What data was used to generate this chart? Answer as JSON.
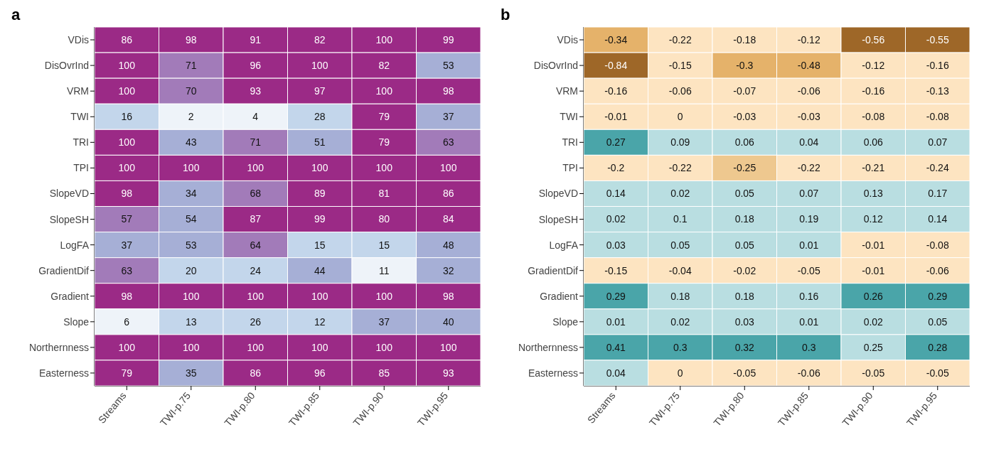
{
  "chart_data": [
    {
      "type": "heatmap",
      "title": "a",
      "categories": [
        "Streams",
        "TWI-p.75",
        "TWI-p.80",
        "TWI-p.85",
        "TWI-p.90",
        "TWI-p.95"
      ],
      "y_categories": [
        "VDis",
        "DisOvrInd",
        "VRM",
        "TWI",
        "TRI",
        "TPI",
        "SlopeVD",
        "SlopeSH",
        "LogFA",
        "GradientDif",
        "Gradient",
        "Slope",
        "Northernness",
        "Easterness"
      ],
      "data_labels": true,
      "cells": [
        [
          86,
          98,
          91,
          82,
          100,
          99
        ],
        [
          100,
          71,
          96,
          100,
          82,
          53
        ],
        [
          100,
          70,
          93,
          97,
          100,
          98
        ],
        [
          16,
          2,
          4,
          28,
          79,
          37
        ],
        [
          100,
          43,
          71,
          51,
          79,
          63
        ],
        [
          100,
          100,
          100,
          100,
          100,
          100
        ],
        [
          98,
          34,
          68,
          89,
          81,
          86
        ],
        [
          57,
          54,
          87,
          99,
          80,
          84
        ],
        [
          37,
          53,
          64,
          15,
          15,
          48
        ],
        [
          63,
          20,
          24,
          44,
          11,
          32
        ],
        [
          98,
          100,
          100,
          100,
          100,
          98
        ],
        [
          6,
          13,
          26,
          12,
          37,
          40
        ],
        [
          100,
          100,
          100,
          100,
          100,
          100
        ],
        [
          79,
          35,
          86,
          96,
          85,
          93
        ]
      ]
    },
    {
      "type": "heatmap",
      "title": "b",
      "categories": [
        "Streams",
        "TWI-p.75",
        "TWI-p.80",
        "TWI-p.85",
        "TWI-p.90",
        "TWI-p.95"
      ],
      "y_categories": [
        "VDis",
        "DisOvrInd",
        "VRM",
        "TWI",
        "TRI",
        "TPI",
        "SlopeVD",
        "SlopeSH",
        "LogFA",
        "GradientDif",
        "Gradient",
        "Slope",
        "Northernness",
        "Easterness"
      ],
      "data_labels": true,
      "cells": [
        [
          -0.34,
          -0.22,
          -0.18,
          -0.12,
          -0.56,
          -0.55
        ],
        [
          -0.84,
          -0.15,
          -0.3,
          -0.48,
          -0.12,
          -0.16
        ],
        [
          -0.16,
          -0.06,
          -0.07,
          -0.06,
          -0.16,
          -0.13
        ],
        [
          -0.01,
          0,
          -0.03,
          -0.03,
          -0.08,
          -0.08
        ],
        [
          0.27,
          0.09,
          0.06,
          0.04,
          0.06,
          0.07
        ],
        [
          -0.2,
          -0.22,
          -0.25,
          -0.22,
          -0.21,
          -0.24
        ],
        [
          0.14,
          0.02,
          0.05,
          0.07,
          0.13,
          0.17
        ],
        [
          0.02,
          0.1,
          0.18,
          0.19,
          0.12,
          0.14
        ],
        [
          0.03,
          0.05,
          0.05,
          0.01,
          -0.01,
          -0.08
        ],
        [
          -0.15,
          -0.04,
          -0.02,
          -0.05,
          -0.01,
          -0.06
        ],
        [
          0.29,
          0.18,
          0.18,
          0.16,
          0.26,
          0.29
        ],
        [
          0.01,
          0.02,
          0.03,
          0.01,
          0.02,
          0.05
        ],
        [
          0.41,
          0.3,
          0.32,
          0.3,
          0.25,
          0.28
        ],
        [
          0.04,
          0,
          -0.05,
          -0.06,
          -0.05,
          -0.05
        ]
      ]
    }
  ]
}
